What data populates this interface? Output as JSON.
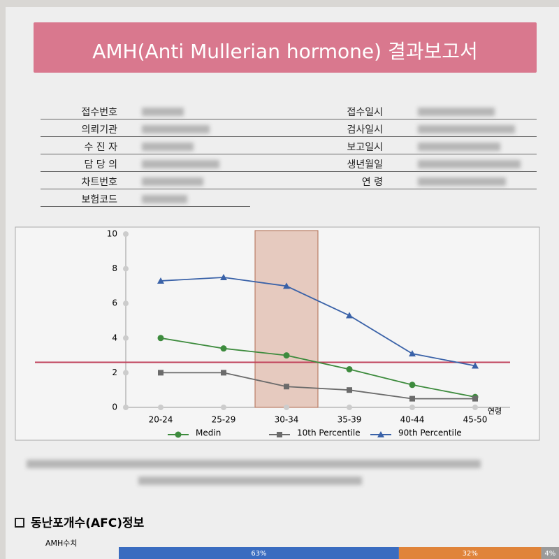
{
  "header": {
    "title": "AMH(Anti Mullerian hormone) 결과보고서"
  },
  "info": {
    "left_labels": [
      "접수번호",
      "의뢰기관",
      "수 진 자",
      "담 당 의",
      "차트번호",
      "보험코드"
    ],
    "right_labels": [
      "접수일시",
      "검사일시",
      "보고일시",
      "생년월일",
      "연    령"
    ]
  },
  "chart_data": {
    "type": "line",
    "categories": [
      "20-24",
      "25-29",
      "30-34",
      "35-39",
      "40-44",
      "45-50"
    ],
    "x_label": "연령",
    "ylim": [
      0,
      10
    ],
    "yticks": [
      0,
      2,
      4,
      6,
      8,
      10
    ],
    "series": [
      {
        "name": "Medin",
        "color": "#3d8b3d",
        "marker": "circle",
        "values": [
          4.0,
          3.4,
          3.0,
          2.2,
          1.3,
          0.6
        ]
      },
      {
        "name": "10th Percentile",
        "color": "#6b6b6b",
        "marker": "square",
        "values": [
          2.0,
          2.0,
          1.2,
          1.0,
          0.5,
          0.5
        ]
      },
      {
        "name": "90th Percentile",
        "color": "#3a62a8",
        "marker": "triangle",
        "values": [
          7.3,
          7.5,
          7.0,
          5.3,
          3.1,
          2.4
        ]
      }
    ],
    "highlight_index": 2,
    "reference_line": {
      "value": 2.6,
      "color": "#c0405a"
    }
  },
  "afc": {
    "title": "동난포개수(AFC)정보",
    "row_label": "AMH수치",
    "values": [
      63,
      32,
      4
    ],
    "value_labels": [
      "63%",
      "32%",
      "4%"
    ],
    "colors": [
      "#3a6cc0",
      "#e0843a",
      "#9a9a9a"
    ]
  }
}
